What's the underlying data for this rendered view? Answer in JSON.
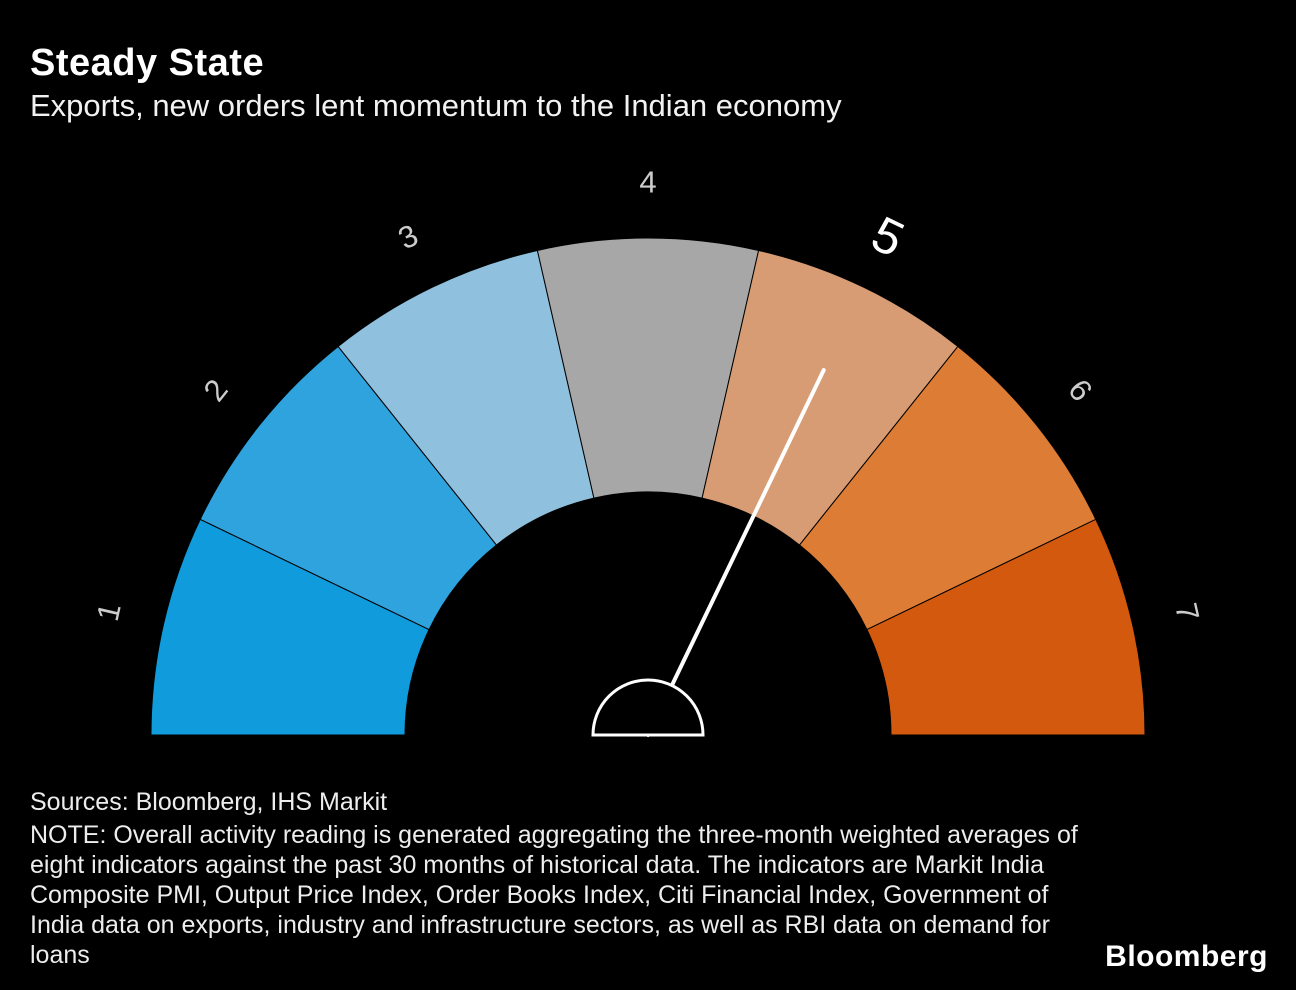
{
  "title": "Steady State",
  "subtitle": "Exports, new orders lent momentum to the Indian economy",
  "footer": {
    "sources": "Sources: Bloomberg, IHS Markit",
    "note": "NOTE: Overall activity reading is generated aggregating the three-month weighted averages of eight indicators against the past 30 months of historical data. The indicators are Markit India Composite PMI, Output Price Index, Order Books Index, Citi Financial Index, Government of India data on exports, industry and infrastructure sectors, as well as RBI data on demand for loans",
    "logo": "Bloomberg"
  },
  "chart_data": {
    "type": "gauge",
    "domain": {
      "min": 0.5,
      "max": 7.5
    },
    "arc": {
      "start_deg": 180,
      "end_deg": 0
    },
    "needle_value": 5,
    "highlighted_label": "5",
    "needle_color": "#ffffff",
    "label_color": "#cccccc",
    "highlight_label_color": "#ffffff",
    "segments": [
      {
        "label": "1",
        "color": "#0f9bdc"
      },
      {
        "label": "2",
        "color": "#2ea3de"
      },
      {
        "label": "3",
        "color": "#8fc0dd"
      },
      {
        "label": "4",
        "color": "#a7a7a7"
      },
      {
        "label": "5",
        "color": "#d79c73"
      },
      {
        "label": "6",
        "color": "#dc7c35"
      },
      {
        "label": "7",
        "color": "#d3590e"
      }
    ]
  }
}
